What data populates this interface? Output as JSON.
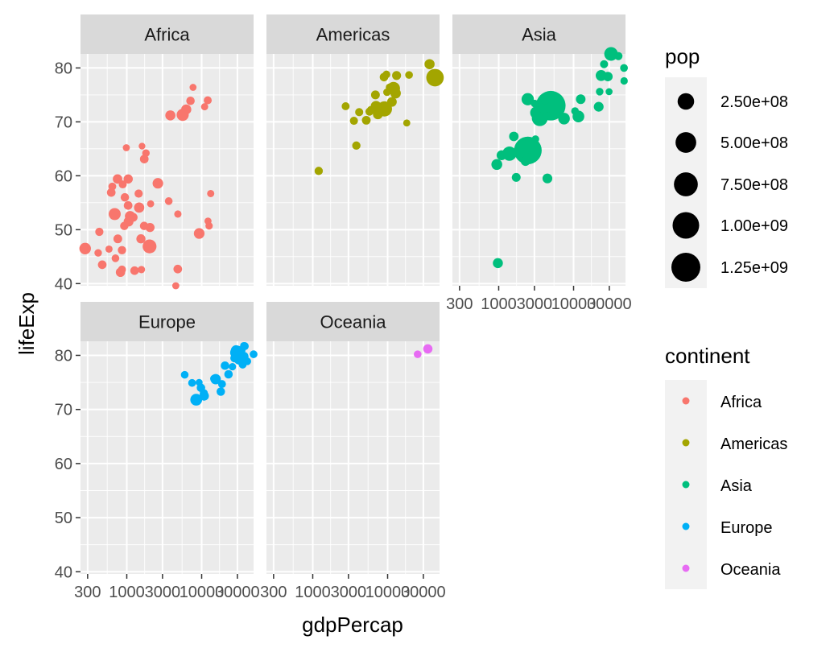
{
  "chart_data": {
    "type": "scatter",
    "facet_by": "continent",
    "xlabel": "gdpPercap",
    "ylabel": "lifeExp",
    "x_scale": "log10",
    "xlim": [
      241,
      49357
    ],
    "ylim": [
      39.6,
      82.6
    ],
    "x_ticks": [
      300,
      1000,
      3000,
      10000,
      30000
    ],
    "x_tick_labels": [
      "300",
      "1000",
      "3000",
      "10000",
      "30000"
    ],
    "y_ticks": [
      40,
      50,
      60,
      70,
      80
    ],
    "y_tick_labels": [
      "40",
      "50",
      "60",
      "70",
      "80"
    ],
    "grid": true,
    "legend_placement": "right",
    "size_legend": {
      "title": "pop",
      "values": [
        250000000,
        500000000,
        750000000,
        1000000000,
        1250000000
      ],
      "labels": [
        "2.50e+08",
        "5.00e+08",
        "7.50e+08",
        "1.00e+09",
        "1.25e+09"
      ]
    },
    "color_legend": {
      "title": "continent",
      "entries": [
        {
          "label": "Africa",
          "color": "#F8766D"
        },
        {
          "label": "Americas",
          "color": "#A3A500"
        },
        {
          "label": "Asia",
          "color": "#00BF7D"
        },
        {
          "label": "Europe",
          "color": "#00B0F6"
        },
        {
          "label": "Oceania",
          "color": "#E76BF3"
        }
      ]
    },
    "panels": [
      {
        "name": "Africa",
        "color": "#F8766D",
        "points": [
          [
            6223,
            72.3,
            33
          ],
          [
            4797,
            42.7,
            12
          ],
          [
            1441,
            56.7,
            8
          ],
          [
            12570,
            50.7,
            2
          ],
          [
            1217,
            52.3,
            14
          ],
          [
            430,
            49.6,
            8
          ],
          [
            2042,
            50.4,
            18
          ],
          [
            706,
            44.7,
            4
          ],
          [
            1704,
            50.7,
            10
          ],
          [
            986,
            65.2,
            1
          ],
          [
            278,
            46.5,
            65
          ],
          [
            3633,
            55.3,
            4
          ],
          [
            1545,
            48.3,
            18
          ],
          [
            2082,
            54.8,
            1
          ],
          [
            5581,
            71.3,
            80
          ],
          [
            12154,
            51.6,
            1
          ],
          [
            641,
            58.0,
            5
          ],
          [
            690,
            52.9,
            77
          ],
          [
            13206,
            56.7,
            1.5
          ],
          [
            753,
            59.4,
            23
          ],
          [
            943,
            56.0,
            10
          ],
          [
            579,
            46.4,
            1.5
          ],
          [
            1463,
            54.1,
            36
          ],
          [
            1569,
            42.6,
            2
          ],
          [
            415,
            45.7,
            3
          ],
          [
            12057,
            74.0,
            6
          ],
          [
            1045,
            59.4,
            19
          ],
          [
            759,
            48.3,
            13
          ],
          [
            1042,
            54.5,
            12
          ],
          [
            1803,
            64.2,
            3
          ],
          [
            10957,
            72.8,
            1.3
          ],
          [
            3820,
            71.2,
            33
          ],
          [
            824,
            42.1,
            20
          ],
          [
            4811,
            52.9,
            2
          ],
          [
            620,
            56.9,
            12
          ],
          [
            2014,
            46.9,
            135
          ],
          [
            7670,
            76.4,
            0.8
          ],
          [
            863,
            46.2,
            9
          ],
          [
            1598,
            65.5,
            0.2
          ],
          [
            1712,
            63.1,
            12
          ],
          [
            862,
            42.6,
            6
          ],
          [
            926,
            50.7,
            9
          ],
          [
            9270,
            49.3,
            44
          ],
          [
            2602,
            58.6,
            42
          ],
          [
            4513,
            39.6,
            1.1
          ],
          [
            1107,
            52.5,
            38
          ],
          [
            883,
            58.4,
            6
          ],
          [
            7093,
            73.9,
            10
          ],
          [
            1056,
            51.5,
            29
          ],
          [
            1271,
            42.4,
            11
          ],
          [
            470,
            43.5,
            12
          ]
        ]
      },
      {
        "name": "Americas",
        "color": "#A3A500",
        "points": [
          [
            12779,
            75.3,
            40
          ],
          [
            3822,
            65.6,
            9
          ],
          [
            9066,
            72.4,
            190
          ],
          [
            36319,
            80.7,
            33
          ],
          [
            13172,
            78.6,
            16
          ],
          [
            7007,
            72.9,
            44
          ],
          [
            9645,
            78.8,
            4
          ],
          [
            8948,
            78.3,
            11
          ],
          [
            6025,
            72.2,
            9
          ],
          [
            6873,
            75.0,
            14
          ],
          [
            5728,
            71.9,
            7
          ],
          [
            5186,
            70.3,
            13
          ],
          [
            1202,
            60.9,
            8.5
          ],
          [
            3548,
            70.2,
            7
          ],
          [
            7321,
            72.6,
            2.8
          ],
          [
            11978,
            76.2,
            108
          ],
          [
            2749,
            72.9,
            5.7
          ],
          [
            9809,
            75.5,
            3.2
          ],
          [
            4173,
            71.8,
            6.7
          ],
          [
            7409,
            71.4,
            28.7
          ],
          [
            19329,
            78.7,
            4
          ],
          [
            18009,
            69.8,
            1.1
          ],
          [
            42952,
            78.2,
            301
          ],
          [
            10611,
            76.4,
            3.4
          ],
          [
            11416,
            73.7,
            26
          ]
        ]
      },
      {
        "name": "Asia",
        "color": "#00BF7D",
        "points": [
          [
            975,
            43.8,
            32
          ],
          [
            29796,
            75.6,
            0.7
          ],
          [
            1391,
            64.1,
            150
          ],
          [
            1714,
            59.7,
            14.1
          ],
          [
            4959,
            73.0,
            1319
          ],
          [
            39725,
            82.2,
            7
          ],
          [
            2452,
            64.7,
            1110
          ],
          [
            3541,
            70.7,
            224
          ],
          [
            11606,
            71.0,
            69
          ],
          [
            4471,
            59.5,
            27.5
          ],
          [
            25523,
            80.7,
            6.4
          ],
          [
            31656,
            82.6,
            127
          ],
          [
            4519,
            72.5,
            6
          ],
          [
            1593,
            67.3,
            23
          ],
          [
            23348,
            78.6,
            49
          ],
          [
            47307,
            77.6,
            2.5
          ],
          [
            10461,
            72.0,
            4
          ],
          [
            12452,
            74.2,
            24.8
          ],
          [
            3096,
            66.8,
            2.9
          ],
          [
            944,
            62.1,
            47.8
          ],
          [
            1091,
            63.8,
            28.9
          ],
          [
            22316,
            75.6,
            3.2
          ],
          [
            2606,
            65.5,
            169
          ],
          [
            3190,
            71.7,
            91
          ],
          [
            21655,
            72.8,
            27.6
          ],
          [
            47143,
            80.0,
            4.6
          ],
          [
            3970,
            72.4,
            20.4
          ],
          [
            4185,
            74.1,
            19.3
          ],
          [
            28718,
            78.4,
            23.2
          ],
          [
            7458,
            70.6,
            65
          ],
          [
            2442,
            74.2,
            85
          ],
          [
            3025,
            73.4,
            4
          ],
          [
            2281,
            62.7,
            22.2
          ]
        ]
      },
      {
        "name": "Europe",
        "color": "#00B0F6",
        "points": [
          [
            5937,
            76.4,
            3.6
          ],
          [
            36126,
            79.8,
            8.2
          ],
          [
            33693,
            79.4,
            10.4
          ],
          [
            7446,
            74.9,
            4.6
          ],
          [
            10681,
            73.0,
            7.3
          ],
          [
            14619,
            75.7,
            4.5
          ],
          [
            22833,
            76.5,
            10.2
          ],
          [
            35278,
            78.3,
            5.5
          ],
          [
            33207,
            79.3,
            5.2
          ],
          [
            30470,
            80.7,
            61
          ],
          [
            32170,
            79.4,
            82.4
          ],
          [
            27538,
            79.5,
            10.7
          ],
          [
            18008,
            73.3,
            10
          ],
          [
            36181,
            81.8,
            0.3
          ],
          [
            40676,
            78.9,
            4.1
          ],
          [
            28570,
            80.5,
            58
          ],
          [
            9254,
            75.0,
            0.7
          ],
          [
            36798,
            79.8,
            16.6
          ],
          [
            49357,
            80.2,
            4.6
          ],
          [
            15390,
            75.6,
            38.5
          ],
          [
            20510,
            78.1,
            10.6
          ],
          [
            10808,
            72.5,
            22.3
          ],
          [
            9787,
            74.0,
            10.2
          ],
          [
            18678,
            74.7,
            5.4
          ],
          [
            25768,
            77.9,
            2
          ],
          [
            28821,
            80.9,
            40.4
          ],
          [
            33860,
            80.9,
            9
          ],
          [
            37506,
            81.7,
            7.6
          ],
          [
            8458,
            71.8,
            71.2
          ],
          [
            33203,
            79.4,
            60.8
          ]
        ]
      },
      {
        "name": "Oceania",
        "color": "#E76BF3",
        "points": [
          [
            34435,
            81.2,
            20.4
          ],
          [
            25185,
            80.2,
            4.1
          ]
        ]
      }
    ]
  }
}
